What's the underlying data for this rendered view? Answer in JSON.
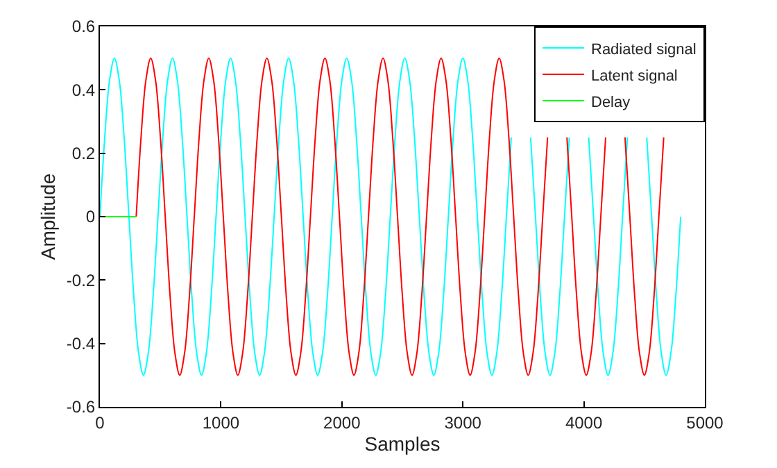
{
  "chart_data": {
    "type": "line",
    "xlabel": "Samples",
    "ylabel": "Amplitude",
    "xlim": [
      0,
      5000
    ],
    "xticks": [
      0,
      1000,
      2000,
      3000,
      4000,
      5000
    ],
    "ylim": [
      -0.6,
      0.6
    ],
    "yticks": [
      -0.6,
      -0.4,
      -0.2,
      0,
      0.2,
      0.4,
      0.6
    ],
    "legend": "top right",
    "marker": "none",
    "line_style": "solid",
    "series": [
      {
        "name": "Radiated signal",
        "color": "#00ffff",
        "x": [
          0,
          40,
          80,
          120,
          160,
          200,
          240,
          280,
          320,
          360,
          400,
          440,
          480,
          520,
          560,
          600,
          640,
          680,
          720,
          760,
          800,
          840,
          880,
          920,
          960,
          1000,
          1040,
          1080,
          1120,
          1160,
          1200,
          1240,
          1280,
          1320,
          1360,
          1400,
          1440,
          1480,
          1520,
          1560,
          1600,
          1640,
          1680,
          1720,
          1760,
          1800,
          1840,
          1880,
          1920,
          1960,
          2000,
          2040,
          2080,
          2120,
          2160,
          2200,
          2240,
          2280,
          2320,
          2360,
          2400,
          2440,
          2480,
          2520,
          2560,
          2600,
          2640,
          2680,
          2720,
          2760,
          2800,
          2840,
          2880,
          2920,
          2960,
          3000,
          3040,
          3080,
          3120,
          3160,
          3200,
          3240,
          3280,
          3320,
          3360,
          3400,
          3440,
          3480,
          3520,
          3560,
          3600,
          3640,
          3680,
          3720,
          3760,
          3800,
          3840,
          3880,
          3920,
          3960,
          4000,
          4040,
          4080,
          4120,
          4160,
          4200,
          4240,
          4280,
          4320,
          4360,
          4400,
          4440,
          4480,
          4520,
          4560,
          4600,
          4640,
          4680,
          4720,
          4760,
          4800
        ],
        "values": [
          0,
          0.25,
          0.43,
          0.5,
          0.43,
          0.25,
          0,
          -0.25,
          -0.43,
          -0.5,
          -0.43,
          -0.25,
          0,
          0.25,
          0.43,
          0.5,
          0.43,
          0.25,
          0,
          -0.25,
          -0.43,
          -0.5,
          -0.43,
          -0.25,
          0,
          0.25,
          0.43,
          0.5,
          0.43,
          0.25,
          0,
          -0.25,
          -0.43,
          -0.5,
          -0.43,
          -0.25,
          0,
          0.25,
          0.43,
          0.5,
          0.43,
          0.25,
          0,
          -0.25,
          -0.43,
          -0.5,
          -0.43,
          -0.25,
          0,
          0.25,
          0.43,
          0.5,
          0.43,
          0.25,
          0,
          -0.25,
          -0.43,
          -0.5,
          -0.43,
          -0.25,
          0,
          0.25,
          0.43,
          0.5,
          0.43,
          0.25,
          0,
          -0.25,
          -0.43,
          -0.5,
          -0.43,
          -0.25,
          0,
          0.25,
          0.43,
          0.5,
          0.43,
          0.25,
          0,
          -0.25,
          -0.43,
          -0.5,
          -0.43,
          -0.25,
          0,
          0.25,
          null,
          null,
          null,
          0.25,
          0,
          -0.25,
          -0.43,
          -0.5,
          -0.43,
          -0.25,
          0,
          0.25,
          null,
          null,
          null,
          0.25,
          0,
          -0.25,
          -0.43,
          -0.5,
          -0.43,
          -0.25,
          0,
          0.25,
          null,
          null,
          null,
          0.25,
          0,
          -0.25,
          -0.43,
          -0.5,
          -0.43,
          -0.25,
          0
        ]
      },
      {
        "name": "Latent signal",
        "color": "#ff0000",
        "x": [
          300,
          340,
          380,
          420,
          460,
          500,
          540,
          580,
          620,
          660,
          700,
          740,
          780,
          820,
          860,
          900,
          940,
          980,
          1020,
          1060,
          1100,
          1140,
          1180,
          1220,
          1260,
          1300,
          1340,
          1380,
          1420,
          1460,
          1500,
          1540,
          1580,
          1620,
          1660,
          1700,
          1740,
          1780,
          1820,
          1860,
          1900,
          1940,
          1980,
          2020,
          2060,
          2100,
          2140,
          2180,
          2220,
          2260,
          2300,
          2340,
          2380,
          2420,
          2460,
          2500,
          2540,
          2580,
          2620,
          2660,
          2700,
          2740,
          2780,
          2820,
          2860,
          2900,
          2940,
          2980,
          3020,
          3060,
          3100,
          3140,
          3180,
          3220,
          3260,
          3300,
          3340,
          3380,
          3420,
          3460,
          3500,
          3540,
          3580,
          3620,
          3660,
          3700,
          3740,
          3780,
          3820,
          3860,
          3900,
          3940,
          3980,
          4020,
          4060,
          4100,
          4140,
          4180,
          4220,
          4260,
          4300,
          4340,
          4380,
          4420,
          4460,
          4500,
          4540,
          4580,
          4620,
          4660
        ],
        "values": [
          0,
          0.25,
          0.43,
          0.5,
          0.43,
          0.25,
          0,
          -0.25,
          -0.43,
          -0.5,
          -0.43,
          -0.25,
          0,
          0.25,
          0.43,
          0.5,
          0.43,
          0.25,
          0,
          -0.25,
          -0.43,
          -0.5,
          -0.43,
          -0.25,
          0,
          0.25,
          0.43,
          0.5,
          0.43,
          0.25,
          0,
          -0.25,
          -0.43,
          -0.5,
          -0.43,
          -0.25,
          0,
          0.25,
          0.43,
          0.5,
          0.43,
          0.25,
          0,
          -0.25,
          -0.43,
          -0.5,
          -0.43,
          -0.25,
          0,
          0.25,
          0.43,
          0.5,
          0.43,
          0.25,
          0,
          -0.25,
          -0.43,
          -0.5,
          -0.43,
          -0.25,
          0,
          0.25,
          0.43,
          0.5,
          0.43,
          0.25,
          0,
          -0.25,
          -0.43,
          -0.5,
          -0.43,
          -0.25,
          0,
          0.25,
          0.43,
          0.5,
          0.43,
          0.25,
          0,
          -0.25,
          -0.43,
          -0.5,
          -0.43,
          -0.25,
          0,
          0.25,
          null,
          null,
          null,
          0.25,
          0,
          -0.25,
          -0.43,
          -0.5,
          -0.43,
          -0.25,
          0,
          0.25,
          null,
          null,
          null,
          0.25,
          0,
          -0.25,
          -0.43,
          -0.5,
          -0.43,
          -0.25,
          0,
          0.25
        ]
      },
      {
        "name": "Delay",
        "color": "#00ff00",
        "x": [
          0,
          300
        ],
        "values": [
          0,
          0
        ]
      }
    ]
  }
}
